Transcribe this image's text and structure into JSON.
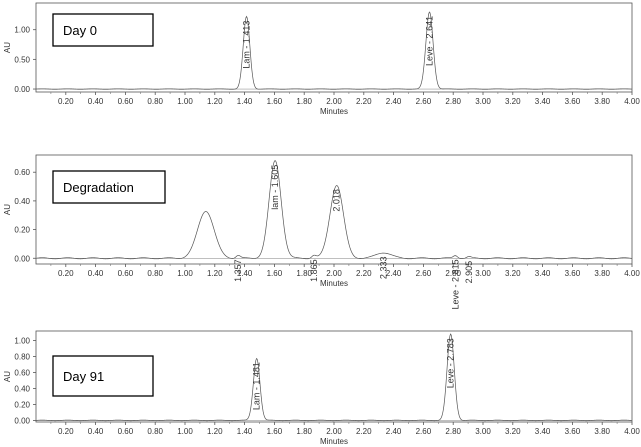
{
  "chart_data": [
    {
      "type": "line",
      "title": "Day 0",
      "xlabel": "Minutes",
      "ylabel": "AU",
      "xlim": [
        0.0,
        4.0
      ],
      "ylim": [
        -0.05,
        1.45
      ],
      "x_ticks": [
        "0.20",
        "0.40",
        "0.60",
        "0.80",
        "1.00",
        "1.20",
        "1.40",
        "1.60",
        "1.80",
        "2.00",
        "2.20",
        "2.40",
        "2.60",
        "2.80",
        "3.00",
        "3.20",
        "3.40",
        "3.60",
        "3.80",
        "4.00"
      ],
      "y_ticks": [
        "0.00",
        "0.50",
        "1.00"
      ],
      "y_tick_values": [
        0.0,
        0.5,
        1.0
      ],
      "grid": false,
      "peaks": [
        {
          "label": "Lam - 1.413",
          "x": 1.413,
          "height": 1.22,
          "width": 0.022
        },
        {
          "label": "Leve - 2.641",
          "x": 2.641,
          "height": 1.3,
          "width": 0.024
        }
      ]
    },
    {
      "type": "line",
      "title": "Degradation",
      "xlabel": "Minutes",
      "ylabel": "AU",
      "xlim": [
        0.0,
        4.0
      ],
      "ylim": [
        -0.04,
        0.72
      ],
      "x_ticks": [
        "0.20",
        "0.40",
        "0.60",
        "0.80",
        "1.00",
        "1.20",
        "1.40",
        "1.60",
        "1.80",
        "2.00",
        "2.20",
        "2.40",
        "2.60",
        "2.80",
        "3.00",
        "3.20",
        "3.40",
        "3.60",
        "3.80",
        "4.00"
      ],
      "y_ticks": [
        "0.00",
        "0.20",
        "0.40",
        "0.60"
      ],
      "y_tick_values": [
        0.0,
        0.2,
        0.4,
        0.6
      ],
      "grid": false,
      "peaks": [
        {
          "label": "",
          "x": 1.14,
          "height": 0.33,
          "width": 0.055
        },
        {
          "label": "1.357",
          "x": 1.357,
          "height": 0.02,
          "width": 0.015
        },
        {
          "label": "lam - 1.605",
          "x": 1.605,
          "height": 0.68,
          "width": 0.04
        },
        {
          "label": "1.865",
          "x": 1.865,
          "height": 0.02,
          "width": 0.015
        },
        {
          "label": "2.018",
          "x": 2.018,
          "height": 0.51,
          "width": 0.045
        },
        {
          "label": "2.333",
          "x": 2.333,
          "height": 0.04,
          "width": 0.05
        },
        {
          "label": "Leve - 2.815",
          "x": 2.815,
          "height": 0.02,
          "width": 0.015
        },
        {
          "label": "2.905",
          "x": 2.905,
          "height": 0.01,
          "width": 0.015
        }
      ]
    },
    {
      "type": "line",
      "title": "Day 91",
      "xlabel": "Minutes",
      "ylabel": "AU",
      "xlim": [
        0.0,
        4.0
      ],
      "ylim": [
        -0.02,
        1.12
      ],
      "x_ticks": [
        "0.20",
        "0.40",
        "0.60",
        "0.80",
        "1.00",
        "1.20",
        "1.40",
        "1.60",
        "1.80",
        "2.00",
        "2.20",
        "2.40",
        "2.60",
        "2.80",
        "3.00",
        "3.20",
        "3.40",
        "3.60",
        "3.80",
        "4.00"
      ],
      "y_ticks": [
        "0.00",
        "0.20",
        "0.40",
        "0.60",
        "0.80",
        "1.00"
      ],
      "y_tick_values": [
        0.0,
        0.2,
        0.4,
        0.6,
        0.8,
        1.0
      ],
      "grid": false,
      "peaks": [
        {
          "label": "Lam - 1.481",
          "x": 1.481,
          "height": 0.78,
          "width": 0.022
        },
        {
          "label": "Leve - 2.783",
          "x": 2.783,
          "height": 1.08,
          "width": 0.024
        }
      ]
    }
  ]
}
